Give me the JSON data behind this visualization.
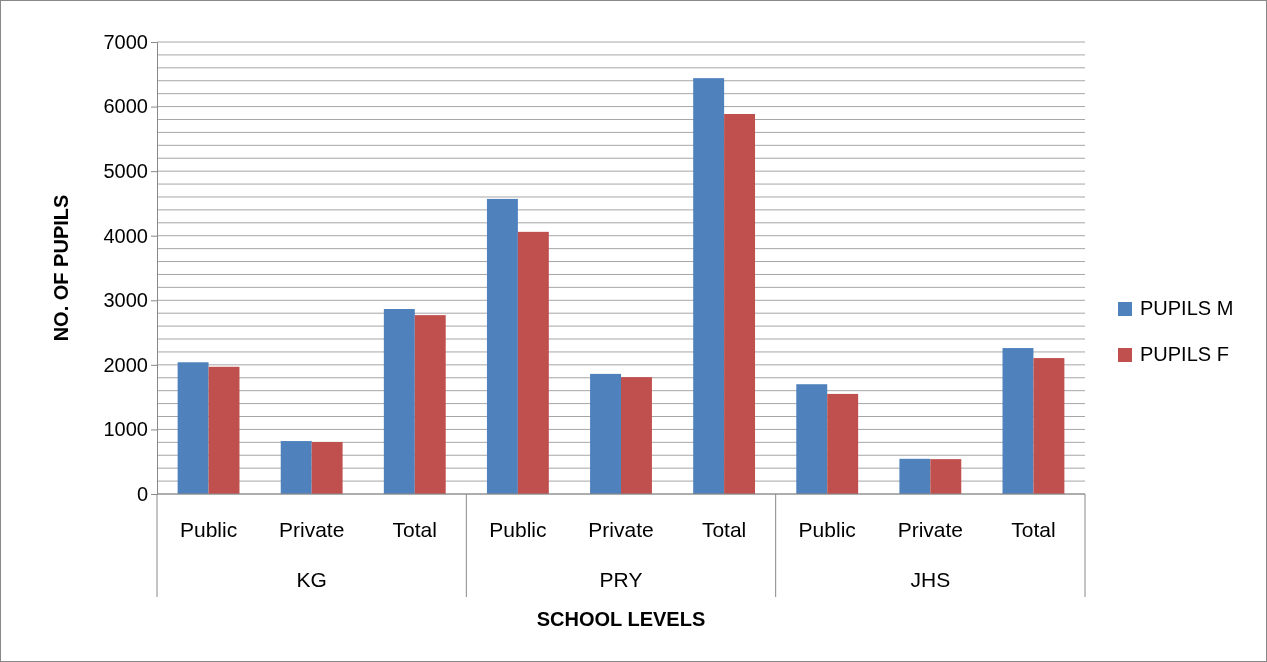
{
  "chart_data": {
    "type": "bar",
    "xlabel": "SCHOOL LEVELS",
    "ylabel": "NO. OF PUPILS",
    "categories": [
      "Public",
      "Private",
      "Total",
      "Public",
      "Private",
      "Total",
      "Public",
      "Private",
      "Total"
    ],
    "annotations": [
      "KG",
      "PRY",
      "JHS"
    ],
    "series": [
      {
        "name": "PUPILS M",
        "color": "#4f81bd",
        "values": [
          2040,
          820,
          2865,
          4570,
          1860,
          6440,
          1700,
          545,
          2260
        ]
      },
      {
        "name": "PUPILS F",
        "color": "#c0504d",
        "values": [
          1970,
          805,
          2770,
          4060,
          1810,
          5885,
          1550,
          540,
          2105
        ]
      }
    ],
    "ylim": [
      0,
      7000
    ],
    "yticks": [
      0,
      {
        "value": 200,
        "label": null
      },
      {
        "value": 400,
        "label": null
      },
      {
        "value": 600,
        "label": null
      },
      {
        "value": 800,
        "label": null
      },
      1000,
      {
        "value": 1200,
        "label": null
      },
      {
        "value": 1400,
        "label": null
      },
      {
        "value": 1600,
        "label": null
      },
      {
        "value": 1800,
        "label": null
      },
      2000,
      {
        "value": 2200,
        "label": null
      },
      {
        "value": 2400,
        "label": null
      },
      {
        "value": 2600,
        "label": null
      },
      {
        "value": 2800,
        "label": null
      },
      3000,
      {
        "value": 3200,
        "label": null
      },
      {
        "value": 3400,
        "label": null
      },
      {
        "value": 3600,
        "label": null
      },
      {
        "value": 3800,
        "label": null
      },
      4000,
      {
        "value": 4200,
        "label": null
      },
      {
        "value": 4400,
        "label": null
      },
      {
        "value": 4600,
        "label": null
      },
      {
        "value": 4800,
        "label": null
      },
      5000,
      {
        "value": 5200,
        "label": null
      },
      {
        "value": 5400,
        "label": null
      },
      {
        "value": 5600,
        "label": null
      },
      {
        "value": 5800,
        "label": null
      },
      6000,
      {
        "value": 6200,
        "label": null
      },
      {
        "value": 6400,
        "label": null
      },
      {
        "value": 6600,
        "label": null
      },
      {
        "value": 6800,
        "label": null
      },
      7000
    ],
    "grid": "y",
    "legend": "right"
  }
}
